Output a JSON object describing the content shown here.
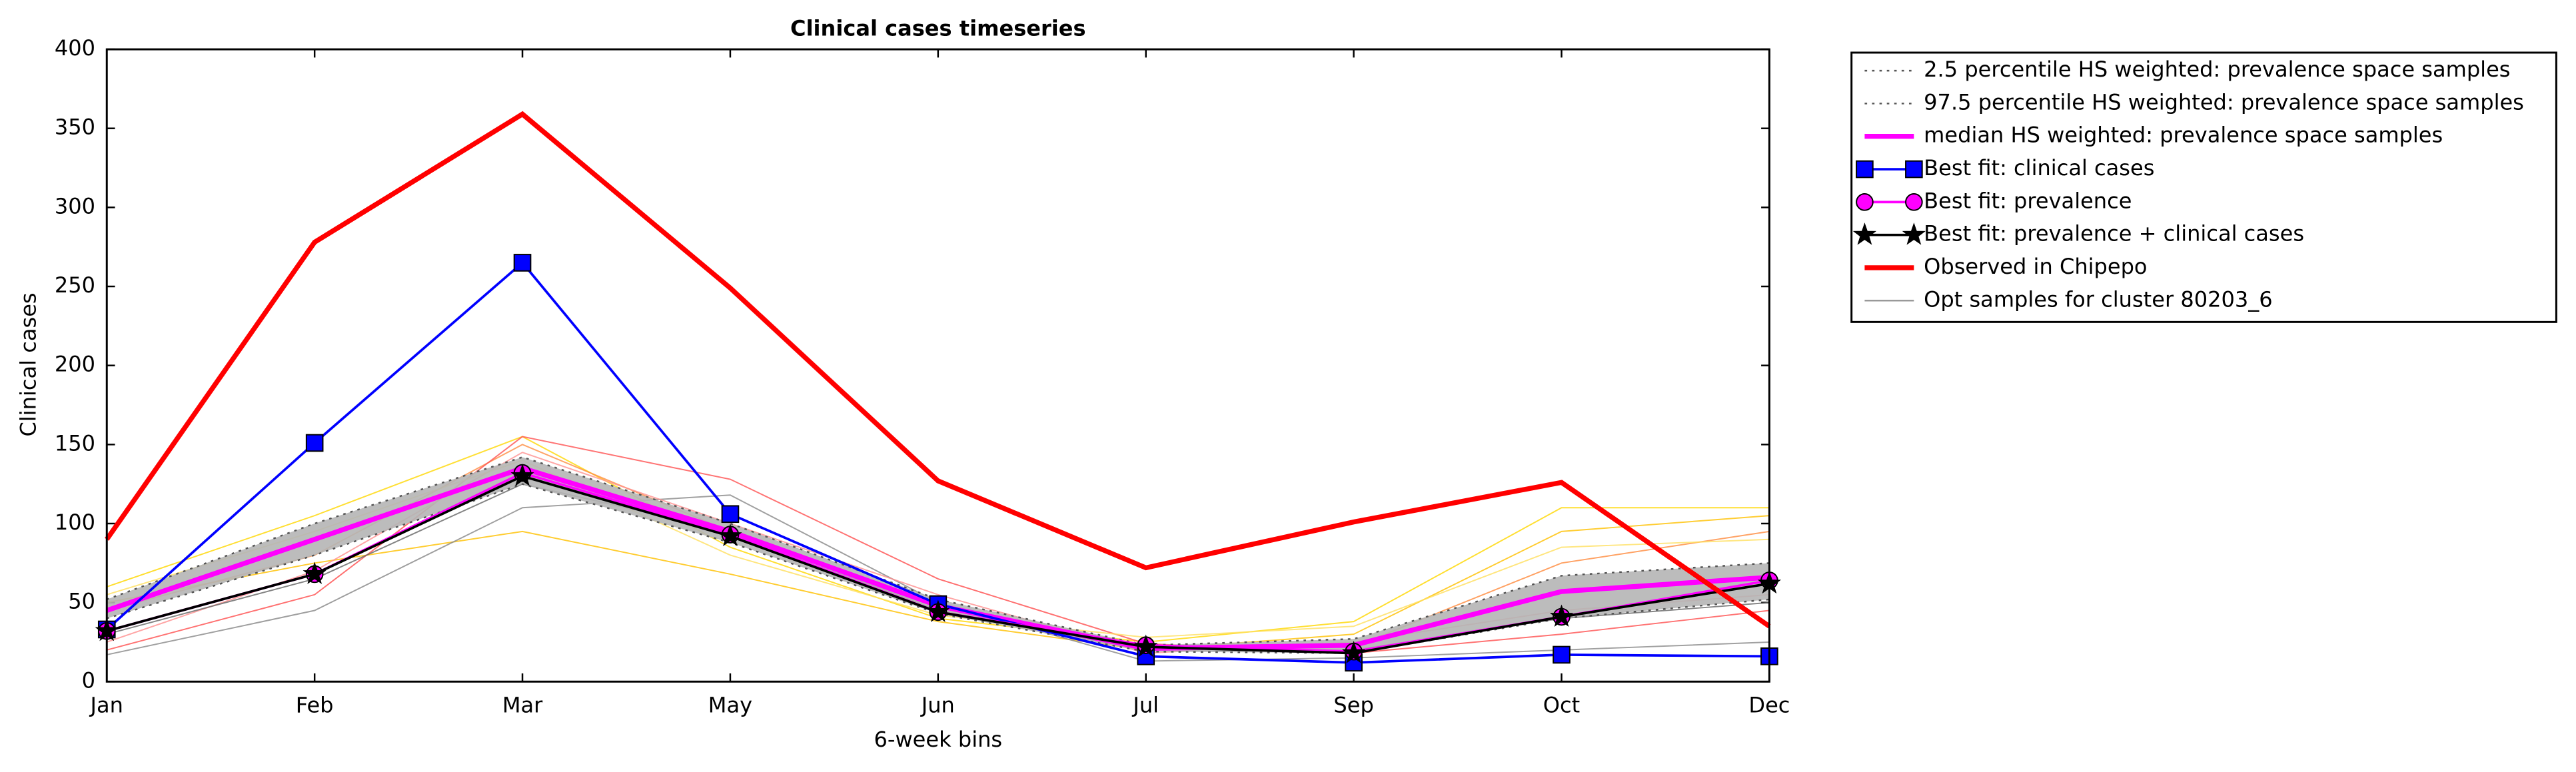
{
  "chart_data": {
    "type": "line",
    "title": "Clinical cases timeseries",
    "xlabel": "6-week bins",
    "ylabel": "Clinical cases",
    "categories": [
      "Jan",
      "Feb",
      "Mar",
      "May",
      "Jun",
      "Jul",
      "Sep",
      "Oct",
      "Dec"
    ],
    "ylim": [
      0,
      400
    ],
    "yticks": [
      0,
      50,
      100,
      150,
      200,
      250,
      300,
      350,
      400
    ],
    "band_color": "#b5b5b5",
    "opt_samples": {
      "name": "Opt samples for cluster 80203_6",
      "legend_color": "#999999",
      "lines": [
        {
          "color": "#ffd700",
          "values": [
            60,
            105,
            155,
            85,
            40,
            25,
            38,
            110,
            110
          ]
        },
        {
          "color": "#ffc000",
          "values": [
            50,
            75,
            95,
            68,
            38,
            20,
            30,
            95,
            105
          ]
        },
        {
          "color": "#ff8c40",
          "values": [
            45,
            80,
            150,
            95,
            45,
            22,
            22,
            75,
            95
          ]
        },
        {
          "color": "#ff5050",
          "values": [
            20,
            55,
            155,
            128,
            65,
            24,
            18,
            30,
            45
          ]
        },
        {
          "color": "#888888",
          "values": [
            17,
            45,
            110,
            118,
            50,
            13,
            15,
            20,
            25
          ]
        },
        {
          "color": "#ff9090",
          "values": [
            25,
            70,
            145,
            100,
            55,
            18,
            25,
            45,
            55
          ]
        },
        {
          "color": "#ffe060",
          "values": [
            55,
            95,
            140,
            80,
            42,
            28,
            35,
            85,
            90
          ]
        },
        {
          "color": "#666666",
          "values": [
            30,
            65,
            125,
            95,
            45,
            20,
            20,
            40,
            50
          ]
        }
      ]
    },
    "series": [
      {
        "name": "2.5 percentile HS weighted: prevalence space samples",
        "color": "#555555",
        "linestyle": "dotted",
        "linewidth": 1,
        "marker": "none",
        "values": [
          40,
          80,
          125,
          88,
          43,
          19,
          18,
          40,
          52
        ]
      },
      {
        "name": "97.5 percentile HS weighted: prevalence space samples",
        "color": "#555555",
        "linestyle": "dotted",
        "linewidth": 1,
        "marker": "none",
        "values": [
          52,
          100,
          142,
          100,
          52,
          23,
          27,
          67,
          75
        ]
      },
      {
        "name": "median HS weighted: prevalence space samples",
        "color": "#ff00ff",
        "linestyle": "solid",
        "linewidth": 3,
        "marker": "none",
        "values": [
          45,
          90,
          135,
          95,
          48,
          21,
          23,
          57,
          66
        ]
      },
      {
        "name": "Best fit: clinical cases",
        "color": "#0000ff",
        "linestyle": "solid",
        "linewidth": 1.5,
        "marker": "square",
        "values": [
          33,
          151,
          265,
          106,
          49,
          16,
          12,
          17,
          16
        ]
      },
      {
        "name": "Best fit: prevalence",
        "color": "#ff00ff",
        "linestyle": "solid",
        "linewidth": 1.5,
        "marker": "circle",
        "values": [
          32,
          68,
          132,
          93,
          44,
          23,
          19,
          41,
          64
        ]
      },
      {
        "name": "Best fit: prevalence + clinical cases",
        "color": "#000000",
        "linestyle": "solid",
        "linewidth": 1.5,
        "marker": "star",
        "values": [
          32,
          68,
          130,
          92,
          44,
          22,
          18,
          41,
          62
        ]
      },
      {
        "name": "Observed in Chipepo",
        "color": "#ff0000",
        "linestyle": "solid",
        "linewidth": 3,
        "marker": "none",
        "values": [
          90,
          278,
          359,
          249,
          127,
          72,
          101,
          126,
          35
        ]
      }
    ]
  }
}
